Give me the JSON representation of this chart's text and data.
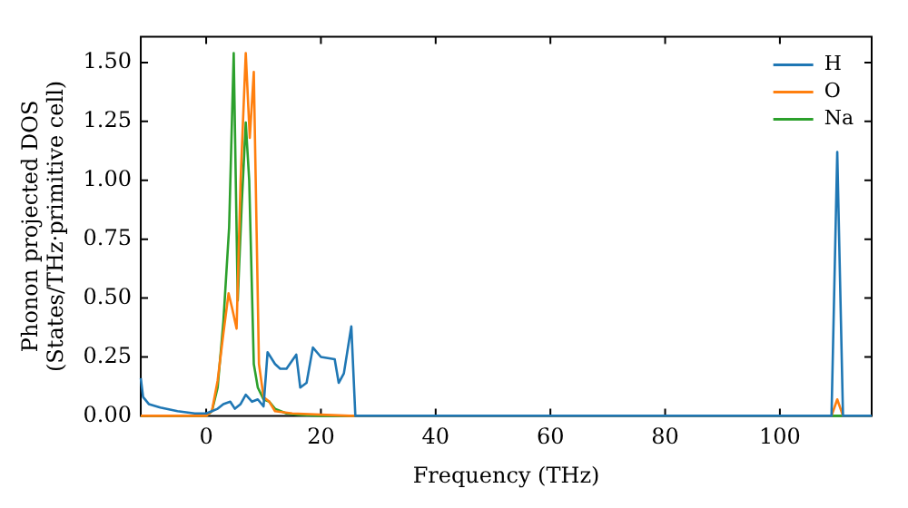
{
  "chart_data": {
    "type": "line",
    "xlabel": "Frequency (THz)",
    "ylabel": "Phonon projected DOS\n(States/THz·primitive cell)",
    "xlim": [
      -11.4,
      116
    ],
    "ylim": [
      0,
      1.61
    ],
    "xticks": [
      0,
      20,
      40,
      60,
      80,
      100
    ],
    "yticks": [
      {
        "value": 0,
        "label": "0.00"
      },
      0.25,
      {
        "value": 0.5,
        "label": "0.50"
      },
      0.75,
      {
        "value": 1,
        "label": "1.00"
      },
      1.25,
      {
        "value": 1.5,
        "label": "1.50"
      }
    ],
    "legend": "top right",
    "grid": false,
    "marker": "none",
    "line_style": "solid",
    "series": [
      {
        "name": "H",
        "color": "#1f77b4",
        "x": [
          -11.4,
          -11,
          -10,
          -8,
          -5,
          -2,
          0,
          1,
          2,
          3,
          4.2,
          5,
          6,
          6.9,
          8,
          9,
          10,
          10.7,
          12,
          12.9,
          14,
          15.7,
          16.4,
          17.5,
          18.6,
          20,
          22.4,
          23.1,
          24,
          25.3,
          26,
          27,
          109,
          110,
          111,
          116
        ],
        "values": [
          0.16,
          0.08,
          0.05,
          0.035,
          0.02,
          0.01,
          0.01,
          0.02,
          0.03,
          0.05,
          0.06,
          0.03,
          0.05,
          0.09,
          0.06,
          0.07,
          0.04,
          0.27,
          0.22,
          0.2,
          0.2,
          0.26,
          0.12,
          0.14,
          0.29,
          0.25,
          0.24,
          0.14,
          0.18,
          0.38,
          0,
          0,
          0,
          1.12,
          0,
          0
        ]
      },
      {
        "name": "O",
        "color": "#ff7f0e",
        "x": [
          -11.4,
          0,
          1,
          2,
          3,
          3.9,
          4.5,
          5.3,
          6,
          6.9,
          7.6,
          8.3,
          9.2,
          10,
          11,
          12,
          15,
          20,
          25,
          109,
          110,
          111,
          116
        ],
        "values": [
          0,
          0,
          0.02,
          0.15,
          0.35,
          0.52,
          0.46,
          0.37,
          1.0,
          1.54,
          1.18,
          1.46,
          0.22,
          0.08,
          0.06,
          0.02,
          0.01,
          0.005,
          0,
          0,
          0.07,
          0,
          0
        ]
      },
      {
        "name": "Na",
        "color": "#2ca02c",
        "x": [
          -11.4,
          0,
          1,
          2,
          3,
          4,
          4.8,
          5.5,
          6.2,
          6.9,
          7.5,
          8.3,
          9,
          10,
          11,
          12,
          14,
          16,
          20,
          116
        ],
        "values": [
          0,
          0,
          0.02,
          0.12,
          0.4,
          0.8,
          1.54,
          0.49,
          0.9,
          1.245,
          1.0,
          0.22,
          0.12,
          0.07,
          0.06,
          0.03,
          0.01,
          0.005,
          0,
          0
        ]
      }
    ]
  }
}
